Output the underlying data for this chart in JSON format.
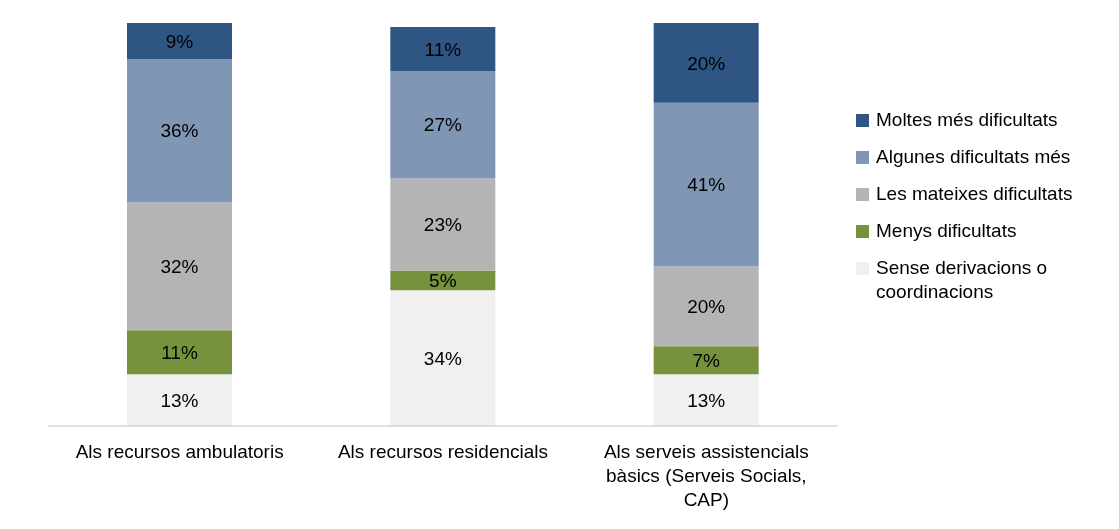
{
  "chart_data": {
    "type": "bar",
    "stacked": true,
    "legend": "right",
    "categories": [
      "Als recursos ambulatoris",
      "Als recursos residencials",
      "Als serveis assistencials bàsics (Serveis Socials, CAP)"
    ],
    "series": [
      {
        "name": "Sense derivacions o coordinacions",
        "color": "#f0f0f0",
        "values": [
          13,
          34,
          13
        ],
        "value_labels": [
          "13%",
          "34%",
          "13%"
        ]
      },
      {
        "name": "Menys dificultats",
        "color": "#76923c",
        "values": [
          11,
          5,
          7
        ],
        "value_labels": [
          "11%",
          "5%",
          "7%"
        ]
      },
      {
        "name": "Les mateixes dificultats",
        "color": "#b4b4b4",
        "values": [
          32,
          23,
          20
        ],
        "value_labels": [
          "32%",
          "23%",
          "20%"
        ]
      },
      {
        "name": "Algunes dificultats més",
        "color": "#7f96b4",
        "values": [
          36,
          27,
          41
        ],
        "value_labels": [
          "36%",
          "27%",
          "41%"
        ]
      },
      {
        "name": "Moltes més dificultats",
        "color": "#2f5583",
        "values": [
          9,
          11,
          20
        ],
        "value_labels": [
          "9%",
          "11%",
          "20%"
        ]
      }
    ]
  }
}
